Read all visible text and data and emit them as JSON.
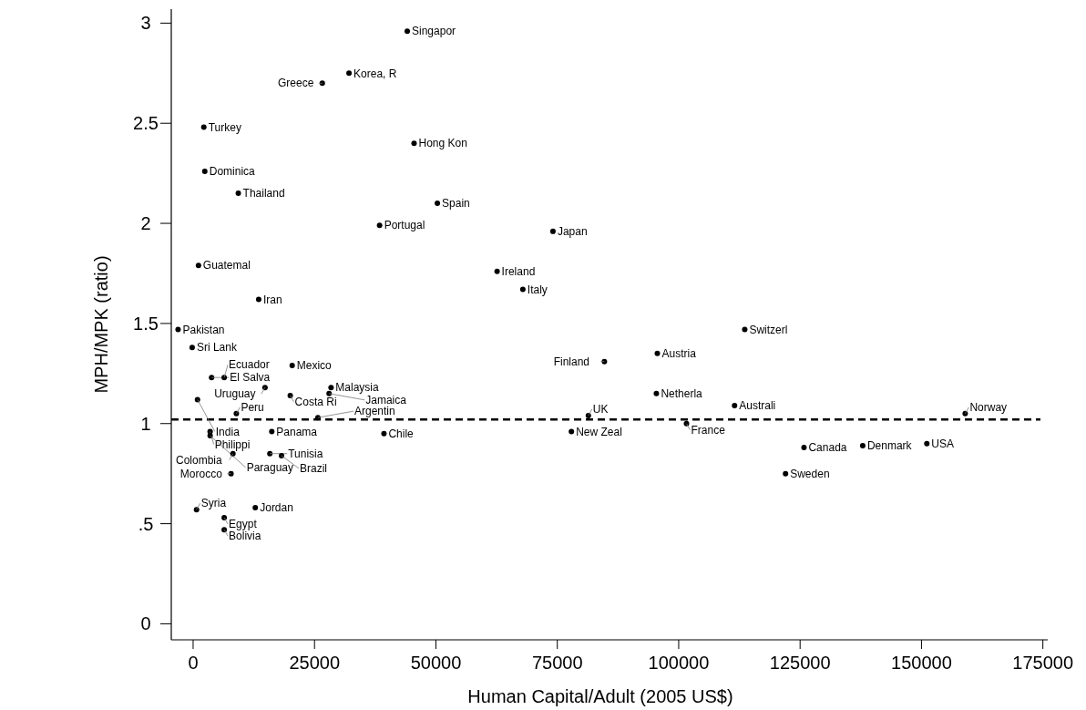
{
  "chart_data": {
    "type": "scatter",
    "xlabel": "Human Capital/Adult (2005 US$)",
    "ylabel": "MPH/MPK (ratio)",
    "xlim": [
      -4500,
      176000
    ],
    "ylim": [
      -0.08,
      3.07
    ],
    "xticks": [
      0,
      25000,
      50000,
      75000,
      100000,
      125000,
      150000,
      175000
    ],
    "yticks": [
      0,
      {
        "value": 0.5,
        "label": ".5"
      },
      1,
      1.5,
      2,
      2.5,
      3
    ],
    "marker": "circle",
    "grid": false,
    "ref_lines": [
      {
        "axis": "y",
        "value": 1.02,
        "color": "#000000",
        "line_style": "dashed"
      }
    ],
    "series": [
      {
        "name": "Singapor",
        "color": "#000000",
        "x": [
          44100
        ],
        "values": [
          2.96
        ]
      },
      {
        "name": "Korea, R",
        "color": "#000000",
        "x": [
          32100
        ],
        "values": [
          2.75
        ]
      },
      {
        "name": "Greece",
        "color": "#000000",
        "x": [
          26600
        ],
        "values": [
          2.7
        ]
      },
      {
        "name": "Turkey",
        "color": "#000000",
        "x": [
          2200
        ],
        "values": [
          2.48
        ]
      },
      {
        "name": "Hong Kon",
        "color": "#000000",
        "x": [
          45500
        ],
        "values": [
          2.4
        ]
      },
      {
        "name": "Dominica",
        "color": "#000000",
        "x": [
          2400
        ],
        "values": [
          2.26
        ]
      },
      {
        "name": "Thailand",
        "color": "#000000",
        "x": [
          9300
        ],
        "values": [
          2.15
        ]
      },
      {
        "name": "Spain",
        "color": "#000000",
        "x": [
          50300
        ],
        "values": [
          2.1
        ]
      },
      {
        "name": "Portugal",
        "color": "#000000",
        "x": [
          38400
        ],
        "values": [
          1.99
        ]
      },
      {
        "name": "Japan",
        "color": "#000000",
        "x": [
          74100
        ],
        "values": [
          1.96
        ]
      },
      {
        "name": "Guatemal",
        "color": "#000000",
        "x": [
          1100
        ],
        "values": [
          1.79
        ]
      },
      {
        "name": "Ireland",
        "color": "#000000",
        "x": [
          62600
        ],
        "values": [
          1.76
        ]
      },
      {
        "name": "Italy",
        "color": "#000000",
        "x": [
          67900
        ],
        "values": [
          1.67
        ]
      },
      {
        "name": "Iran",
        "color": "#000000",
        "x": [
          13500
        ],
        "values": [
          1.62
        ]
      },
      {
        "name": "Pakistan",
        "color": "#000000",
        "x": [
          -3100
        ],
        "values": [
          1.47
        ]
      },
      {
        "name": "Switzerl",
        "color": "#000000",
        "x": [
          113600
        ],
        "values": [
          1.47
        ]
      },
      {
        "name": "Sri Lank",
        "color": "#000000",
        "x": [
          -200
        ],
        "values": [
          1.38
        ]
      },
      {
        "name": "Austria",
        "color": "#000000",
        "x": [
          95600
        ],
        "values": [
          1.35
        ]
      },
      {
        "name": "Finland",
        "color": "#000000",
        "x": [
          84700
        ],
        "values": [
          1.31
        ]
      },
      {
        "name": "Mexico",
        "color": "#000000",
        "x": [
          20400
        ],
        "values": [
          1.29
        ]
      },
      {
        "name": "El Salva",
        "color": "#000000",
        "x": [
          3800
        ],
        "values": [
          1.23
        ]
      },
      {
        "name": "Ecuador",
        "color": "#000000",
        "x": [
          6400
        ],
        "values": [
          1.23
        ]
      },
      {
        "name": "Uruguay",
        "color": "#000000",
        "x": [
          14800
        ],
        "values": [
          1.18
        ]
      },
      {
        "name": "Malaysia",
        "color": "#000000",
        "x": [
          28400
        ],
        "values": [
          1.18
        ]
      },
      {
        "name": "Costa Ri",
        "color": "#000000",
        "x": [
          20000
        ],
        "values": [
          1.14
        ]
      },
      {
        "name": "Jamaica",
        "color": "#000000",
        "x": [
          28000
        ],
        "values": [
          1.15
        ]
      },
      {
        "name": "Netherla",
        "color": "#000000",
        "x": [
          95400
        ],
        "values": [
          1.15
        ]
      },
      {
        "name": "India",
        "color": "#000000",
        "x": [
          900
        ],
        "values": [
          1.12
        ]
      },
      {
        "name": "Australi",
        "color": "#000000",
        "x": [
          111500
        ],
        "values": [
          1.09
        ]
      },
      {
        "name": "Peru",
        "color": "#000000",
        "x": [
          8900
        ],
        "values": [
          1.05
        ]
      },
      {
        "name": "Norway",
        "color": "#000000",
        "x": [
          159000
        ],
        "values": [
          1.05
        ]
      },
      {
        "name": "Argentin",
        "color": "#000000",
        "x": [
          25700
        ],
        "values": [
          1.03
        ]
      },
      {
        "name": "UK",
        "color": "#000000",
        "x": [
          81400
        ],
        "values": [
          1.04
        ]
      },
      {
        "name": "France",
        "color": "#000000",
        "x": [
          101600
        ],
        "values": [
          1.0
        ]
      },
      {
        "name": "Philippi",
        "color": "#000000",
        "x": [
          3500
        ],
        "values": [
          0.96
        ]
      },
      {
        "name": "Panama",
        "color": "#000000",
        "x": [
          16200
        ],
        "values": [
          0.96
        ]
      },
      {
        "name": "New Zeal",
        "color": "#000000",
        "x": [
          77900
        ],
        "values": [
          0.96
        ]
      },
      {
        "name": "Chile",
        "color": "#000000",
        "x": [
          39300
        ],
        "values": [
          0.95
        ]
      },
      {
        "name": "Paraguay",
        "color": "#000000",
        "x": [
          3500
        ],
        "values": [
          0.94
        ]
      },
      {
        "name": "USA",
        "color": "#000000",
        "x": [
          151100
        ],
        "values": [
          0.9
        ]
      },
      {
        "name": "Denmark",
        "color": "#000000",
        "x": [
          137900
        ],
        "values": [
          0.89
        ]
      },
      {
        "name": "Canada",
        "color": "#000000",
        "x": [
          125800
        ],
        "values": [
          0.88
        ]
      },
      {
        "name": "Colombia",
        "color": "#000000",
        "x": [
          8200
        ],
        "values": [
          0.85
        ]
      },
      {
        "name": "Tunisia",
        "color": "#000000",
        "x": [
          15800
        ],
        "values": [
          0.85
        ]
      },
      {
        "name": "Brazil",
        "color": "#000000",
        "x": [
          18200
        ],
        "values": [
          0.84
        ]
      },
      {
        "name": "Morocco",
        "color": "#000000",
        "x": [
          7800
        ],
        "values": [
          0.75
        ]
      },
      {
        "name": "Sweden",
        "color": "#000000",
        "x": [
          122000
        ],
        "values": [
          0.75
        ]
      },
      {
        "name": "Syria",
        "color": "#000000",
        "x": [
          700
        ],
        "values": [
          0.57
        ]
      },
      {
        "name": "Jordan",
        "color": "#000000",
        "x": [
          12800
        ],
        "values": [
          0.58
        ]
      },
      {
        "name": "Egypt",
        "color": "#000000",
        "x": [
          6400
        ],
        "values": [
          0.53
        ]
      },
      {
        "name": "Bolivia",
        "color": "#000000",
        "x": [
          6400
        ],
        "values": [
          0.47
        ]
      }
    ]
  }
}
